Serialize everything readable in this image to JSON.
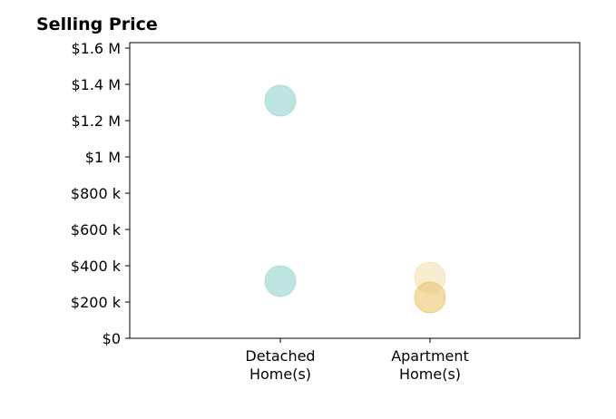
{
  "chart_data": {
    "type": "scatter",
    "title": "Selling Price",
    "xlabel": "",
    "ylabel": "",
    "categories": [
      "Detached\nHome(s)",
      "Apartment\nHome(s)"
    ],
    "y_ticks": [
      "$0",
      "$200 k",
      "$400 k",
      "$600 k",
      "$800 k",
      "$1 M",
      "$1.2 M",
      "$1.4 M",
      "$1.6 M"
    ],
    "ylim": [
      0,
      1630000
    ],
    "grid": false,
    "points": [
      {
        "category": "Detached\nHome(s)",
        "value": 1310000,
        "color": "#a8dbd6",
        "opacity": 0.75
      },
      {
        "category": "Detached\nHome(s)",
        "value": 315000,
        "color": "#a8dbd6",
        "opacity": 0.75
      },
      {
        "category": "Apartment\nHome(s)",
        "value": 335000,
        "color": "#f5e2b8",
        "opacity": 0.65
      },
      {
        "category": "Apartment\nHome(s)",
        "value": 225000,
        "color": "#ecca7a",
        "opacity": 0.65
      }
    ]
  }
}
